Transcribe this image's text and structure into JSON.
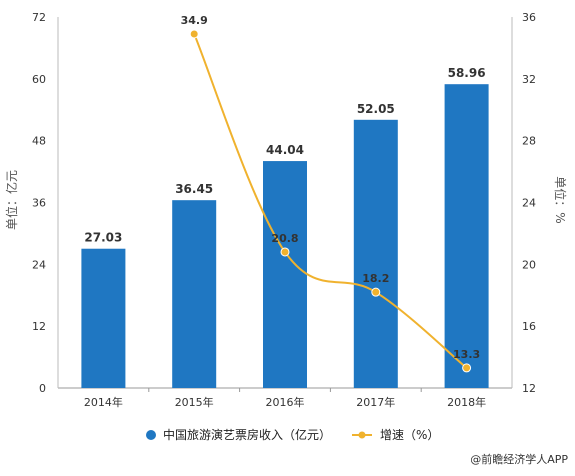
{
  "chart_data": {
    "type": "bar",
    "categories": [
      "2014年",
      "2015年",
      "2016年",
      "2017年",
      "2018年"
    ],
    "series": [
      {
        "name": "中国旅游演艺票房收入（亿元）",
        "type": "bar",
        "axis": "left",
        "values": [
          27.03,
          36.45,
          44.04,
          52.05,
          58.96
        ],
        "labels": [
          "27.03",
          "36.45",
          "44.04",
          "52.05",
          "58.96"
        ],
        "color": "#1f77c2"
      },
      {
        "name": "增速（%）",
        "type": "line",
        "axis": "right",
        "values": [
          null,
          34.9,
          20.8,
          18.2,
          13.3
        ],
        "labels": [
          "",
          "34.9",
          "20.8",
          "18.2",
          "13.3"
        ],
        "color": "#f0b22e"
      }
    ],
    "ylabel": "单位：亿元",
    "y2label": "单位：%",
    "ylim": [
      0,
      72
    ],
    "yticks": [
      "0",
      "12",
      "24",
      "36",
      "48",
      "60",
      "72"
    ],
    "y2lim": [
      12,
      36
    ],
    "y2ticks": [
      "12",
      "16",
      "20",
      "24",
      "28",
      "32",
      "36"
    ],
    "grid": false,
    "legend_position": "bottom"
  },
  "source": "@前瞻经济学人APP"
}
